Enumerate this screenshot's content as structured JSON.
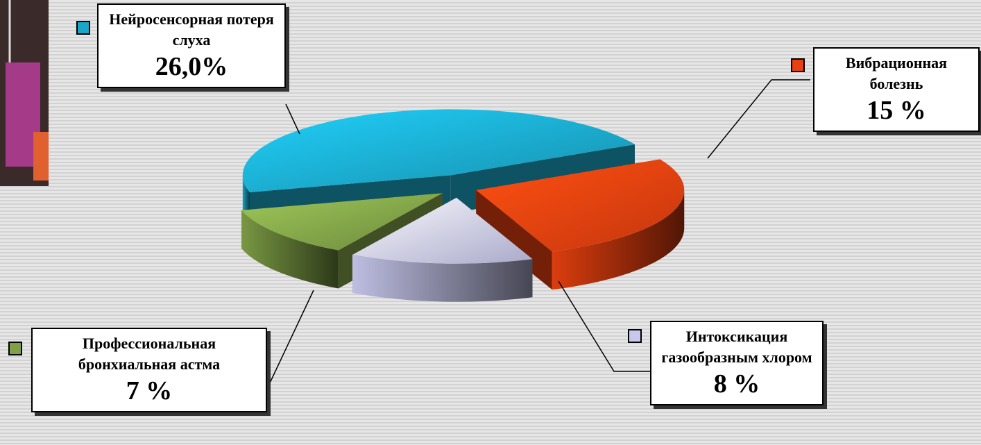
{
  "chart_data": {
    "type": "pie",
    "categories": [
      "Нейросенсорная потеря слуха",
      "Вибрационная болезнь",
      "Интоксикация газообразным хлором",
      "Профессиональная бронхиальная астма"
    ],
    "values": [
      26.0,
      15,
      8,
      7
    ],
    "value_labels": [
      "26,0%",
      "15 %",
      "8 %",
      "7 %"
    ],
    "colors": [
      "#1aa6c8",
      "#e8400f",
      "#c8c8ee",
      "#7fa047"
    ]
  }
}
